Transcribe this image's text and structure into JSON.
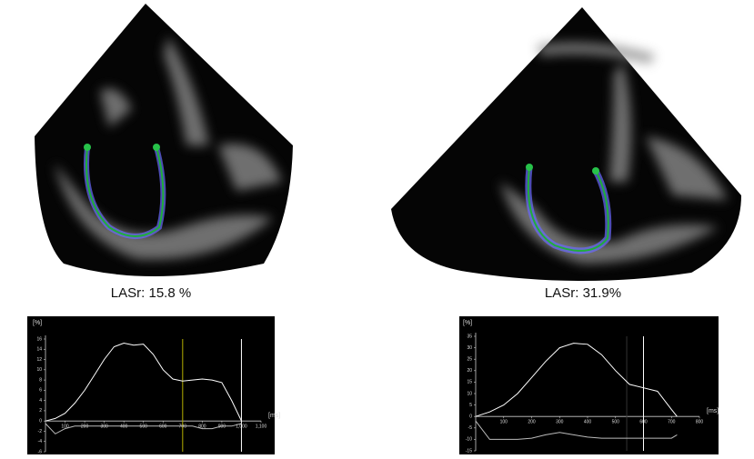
{
  "chart_data": [
    {
      "type": "line",
      "title": "LASr: 15.8 %",
      "ylabel": "[%]",
      "xlabel": "[ms]",
      "x": [
        0,
        50,
        100,
        150,
        200,
        250,
        300,
        350,
        400,
        450,
        500,
        550,
        600,
        650,
        700,
        750,
        800,
        850,
        900,
        950,
        1000
      ],
      "series": [
        {
          "color": "#ffffff",
          "values": [
            0,
            0.5,
            1.5,
            3.5,
            6,
            9,
            12,
            14.5,
            15.2,
            14.8,
            15,
            13,
            10,
            8.2,
            7.8,
            8,
            8.2,
            8,
            7.5,
            4,
            0
          ]
        },
        {
          "color": "#bbbbbb",
          "values": [
            -0.5,
            -2.5,
            -1.5,
            -1,
            -1,
            -1,
            -1,
            -1,
            -1,
            -1,
            -1,
            -1,
            -1,
            -1,
            -1,
            -1,
            -1.5,
            -1.5,
            -1,
            -1,
            -0.5
          ]
        }
      ],
      "markers": [
        {
          "x": 700,
          "color": "#b5b000"
        },
        {
          "x": 1000,
          "color": "#ffffff"
        }
      ],
      "xlim": [
        0,
        1100
      ],
      "xticks": [
        100,
        200,
        300,
        400,
        500,
        600,
        700,
        800,
        900,
        {
          "value": 1000,
          "label": "1,000"
        },
        {
          "value": 1100,
          "label": "1,100"
        }
      ],
      "ylim": [
        -6,
        16
      ],
      "yticks": [
        16,
        14,
        12,
        10,
        8,
        6,
        4,
        2,
        0,
        -2,
        -4,
        -6
      ]
    },
    {
      "type": "line",
      "title": "LASr: 31.9%",
      "ylabel": "[%]",
      "xlabel": "[ms]",
      "x": [
        0,
        50,
        100,
        150,
        200,
        250,
        300,
        350,
        400,
        450,
        500,
        550,
        600,
        650,
        700,
        720
      ],
      "series": [
        {
          "color": "#ffffff",
          "values": [
            0,
            2,
            5,
            10,
            17,
            24,
            30,
            32,
            31.5,
            27,
            20,
            14,
            12.5,
            11,
            3,
            0
          ]
        },
        {
          "color": "#bbbbbb",
          "values": [
            -2,
            -10,
            -10,
            -10,
            -9.5,
            -8,
            -7,
            -8,
            -9,
            -9.5,
            -9.5,
            -9.5,
            -9.5,
            -9.5,
            -9.5,
            -8
          ]
        }
      ],
      "markers": [
        {
          "x": 540,
          "color": "#333333"
        },
        {
          "x": 600,
          "color": "#ffffff"
        }
      ],
      "xlim": [
        0,
        800
      ],
      "xticks": [
        100,
        200,
        300,
        400,
        500,
        600,
        700,
        800
      ],
      "ylim": [
        -15,
        35
      ],
      "yticks": [
        35,
        30,
        25,
        20,
        15,
        10,
        5,
        0,
        -5,
        -10,
        -15
      ]
    }
  ]
}
